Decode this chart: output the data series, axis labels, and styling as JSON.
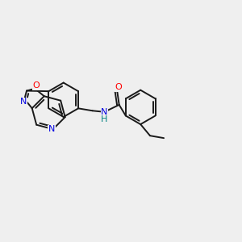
{
  "background_color": "#efefef",
  "bond_color": "#1a1a1a",
  "atom_colors": {
    "N": "#0000e0",
    "O": "#ff0000",
    "H": "#008080",
    "C": "#1a1a1a"
  },
  "figsize": [
    3.0,
    3.0
  ],
  "dpi": 100
}
